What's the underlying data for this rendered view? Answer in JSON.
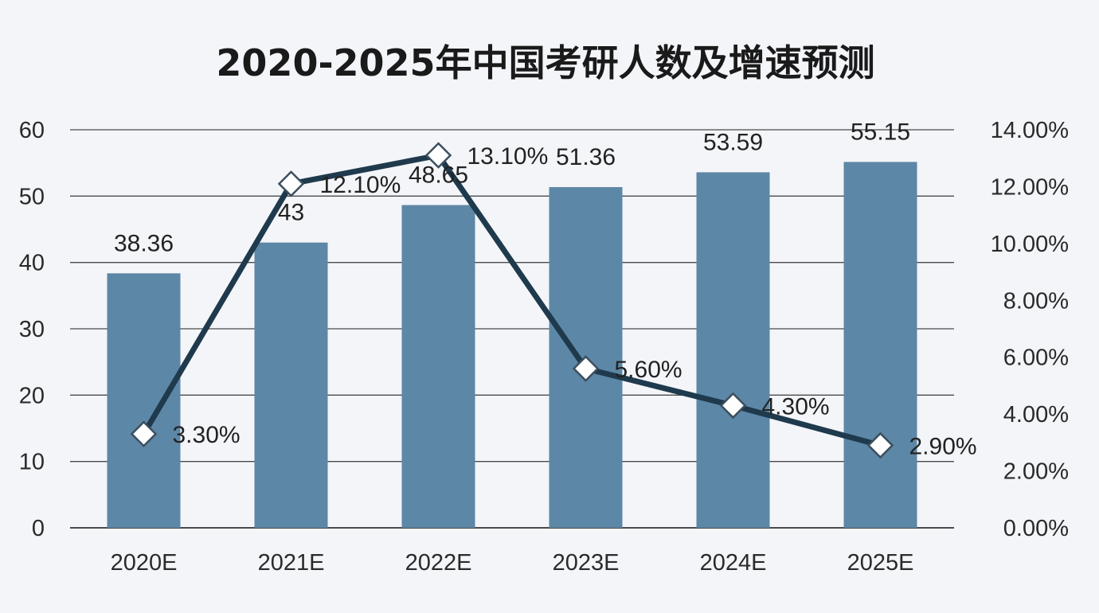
{
  "chart_data": {
    "type": "bar",
    "title": "2020-2025年中国考研人数及增速预测",
    "categories": [
      "2020E",
      "2021E",
      "2022E",
      "2023E",
      "2024E",
      "2025E"
    ],
    "series": [
      {
        "type": "bar",
        "axis": "left",
        "values": [
          38.36,
          43,
          48.65,
          51.36,
          53.59,
          55.15
        ],
        "labels": [
          "38.36",
          "43",
          "48.65",
          "51.36",
          "53.59",
          "55.15"
        ],
        "color": "#5d87a6"
      },
      {
        "type": "line",
        "axis": "right",
        "values": [
          3.3,
          12.1,
          13.1,
          5.6,
          4.3,
          2.9
        ],
        "labels": [
          "3.30%",
          "12.10%",
          "13.10%",
          "5.60%",
          "4.30%",
          "2.90%"
        ],
        "color": "#1f3a4d",
        "marker": "diamond"
      }
    ],
    "y_left": {
      "range": [
        0,
        60
      ],
      "ticks": [
        "0",
        "10",
        "20",
        "30",
        "40",
        "50",
        "60"
      ]
    },
    "y_right": {
      "range": [
        0,
        14
      ],
      "ticks": [
        "0.00%",
        "2.00%",
        "4.00%",
        "6.00%",
        "8.00%",
        "10.00%",
        "12.00%",
        "14.00%"
      ]
    },
    "grid": true,
    "legend": "none",
    "colors": {
      "background": "#f3f5f9",
      "gridline": "#4a4a4a"
    }
  }
}
